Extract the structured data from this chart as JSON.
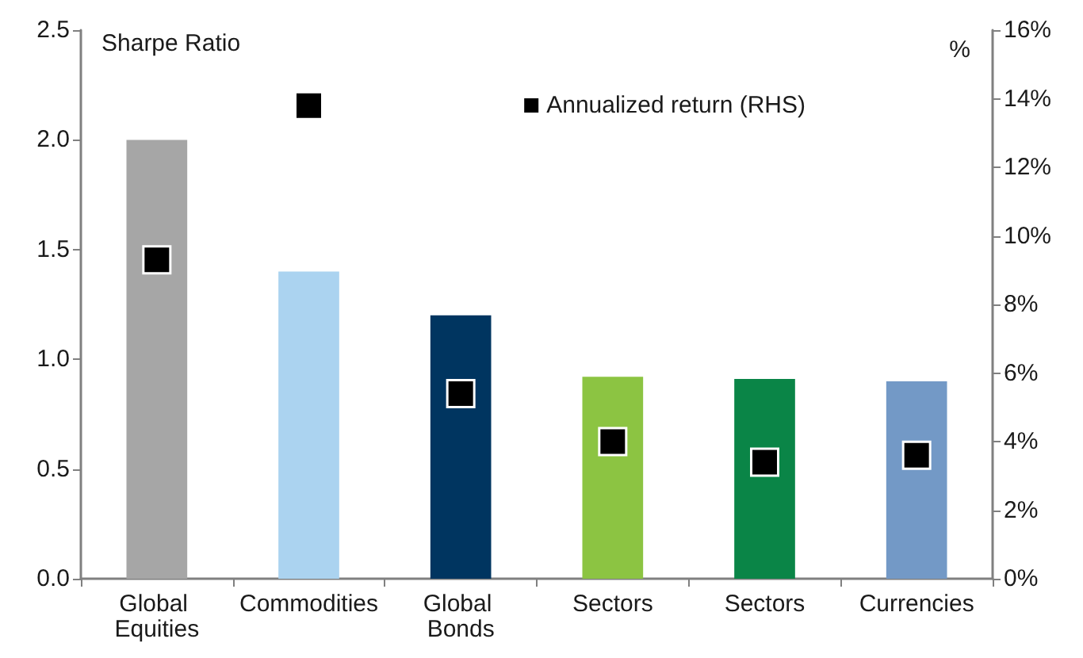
{
  "chart_data": {
    "type": "bar",
    "ylabel": "Sharpe Ratio",
    "y2label": "%",
    "categories": [
      "Global Equities",
      "Commodities",
      "Global Bonds",
      "Sectors",
      "Sectors",
      "Currencies"
    ],
    "series": [
      {
        "colors": [
          "#a6a6a6",
          "#abd3f0",
          "#003560",
          "#8cc442",
          "#0a8547",
          "#7399c6"
        ],
        "values": [
          2.0,
          1.4,
          1.2,
          0.92,
          0.91,
          0.9
        ]
      },
      {
        "type": "scatter",
        "name": "Annualized return (RHS)",
        "color": "#000000",
        "axis": "y2",
        "marker": "square",
        "values": [
          9.3,
          13.8,
          5.4,
          4.0,
          3.4,
          3.6
        ]
      }
    ],
    "ylim": [
      0,
      2.5
    ],
    "yticks": [
      {
        "value": 0,
        "label": "0.0"
      },
      {
        "value": 0.5,
        "label": "0.5"
      },
      {
        "value": 1,
        "label": "1.0"
      },
      {
        "value": 1.5,
        "label": "1.5"
      },
      {
        "value": 2,
        "label": "2.0"
      },
      {
        "value": 2.5,
        "label": "2.5"
      }
    ],
    "y2lim": [
      0,
      16
    ],
    "y2ticks": [
      {
        "value": 0,
        "label": "0%"
      },
      {
        "value": 2,
        "label": "2%"
      },
      {
        "value": 4,
        "label": "4%"
      },
      {
        "value": 6,
        "label": "6%"
      },
      {
        "value": 8,
        "label": "8%"
      },
      {
        "value": 10,
        "label": "10%"
      },
      {
        "value": 12,
        "label": "12%"
      },
      {
        "value": 14,
        "label": "14%"
      },
      {
        "value": 16,
        "label": "16%"
      }
    ],
    "grid": false,
    "legend": "top right"
  }
}
